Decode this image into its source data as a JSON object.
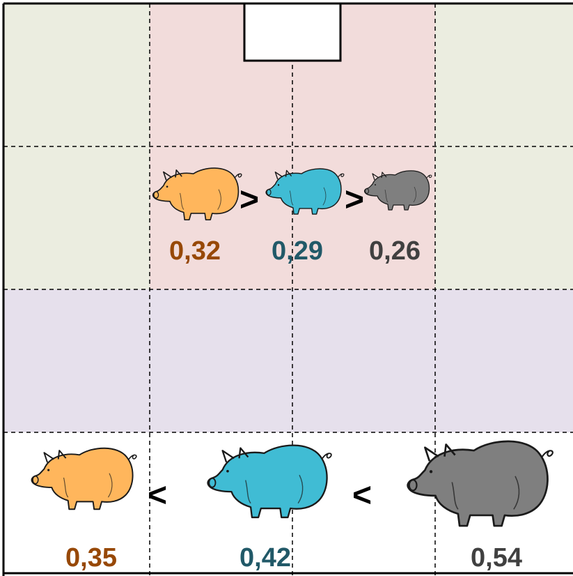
{
  "colors": {
    "outer_zone": "#EBEDE0",
    "center_zone": "#F2DCDB",
    "middle_band": "#E6E0EC",
    "bottom_row": "#FFFFFF",
    "orange_pig": "#FFB65C",
    "blue_pig": "#40BCD4",
    "gray_pig": "#7F7F7F",
    "orange_text": "#974806",
    "blue_text": "#215968",
    "gray_text": "#404040"
  },
  "top_group": {
    "comparators": [
      ">",
      ">"
    ],
    "values": [
      {
        "label": "0,32",
        "color_key": "orange_text",
        "icon": "orange-pig-icon"
      },
      {
        "label": "0,29",
        "color_key": "blue_text",
        "icon": "blue-pig-icon"
      },
      {
        "label": "0,26",
        "color_key": "gray_text",
        "icon": "gray-pig-icon"
      }
    ]
  },
  "bottom_group": {
    "comparators": [
      "<",
      "<"
    ],
    "values": [
      {
        "label": "0,35",
        "color_key": "orange_text",
        "icon": "orange-pig-icon"
      },
      {
        "label": "0,42",
        "color_key": "blue_text",
        "icon": "blue-pig-icon"
      },
      {
        "label": "0,54",
        "color_key": "gray_text",
        "icon": "gray-pig-icon"
      }
    ]
  }
}
